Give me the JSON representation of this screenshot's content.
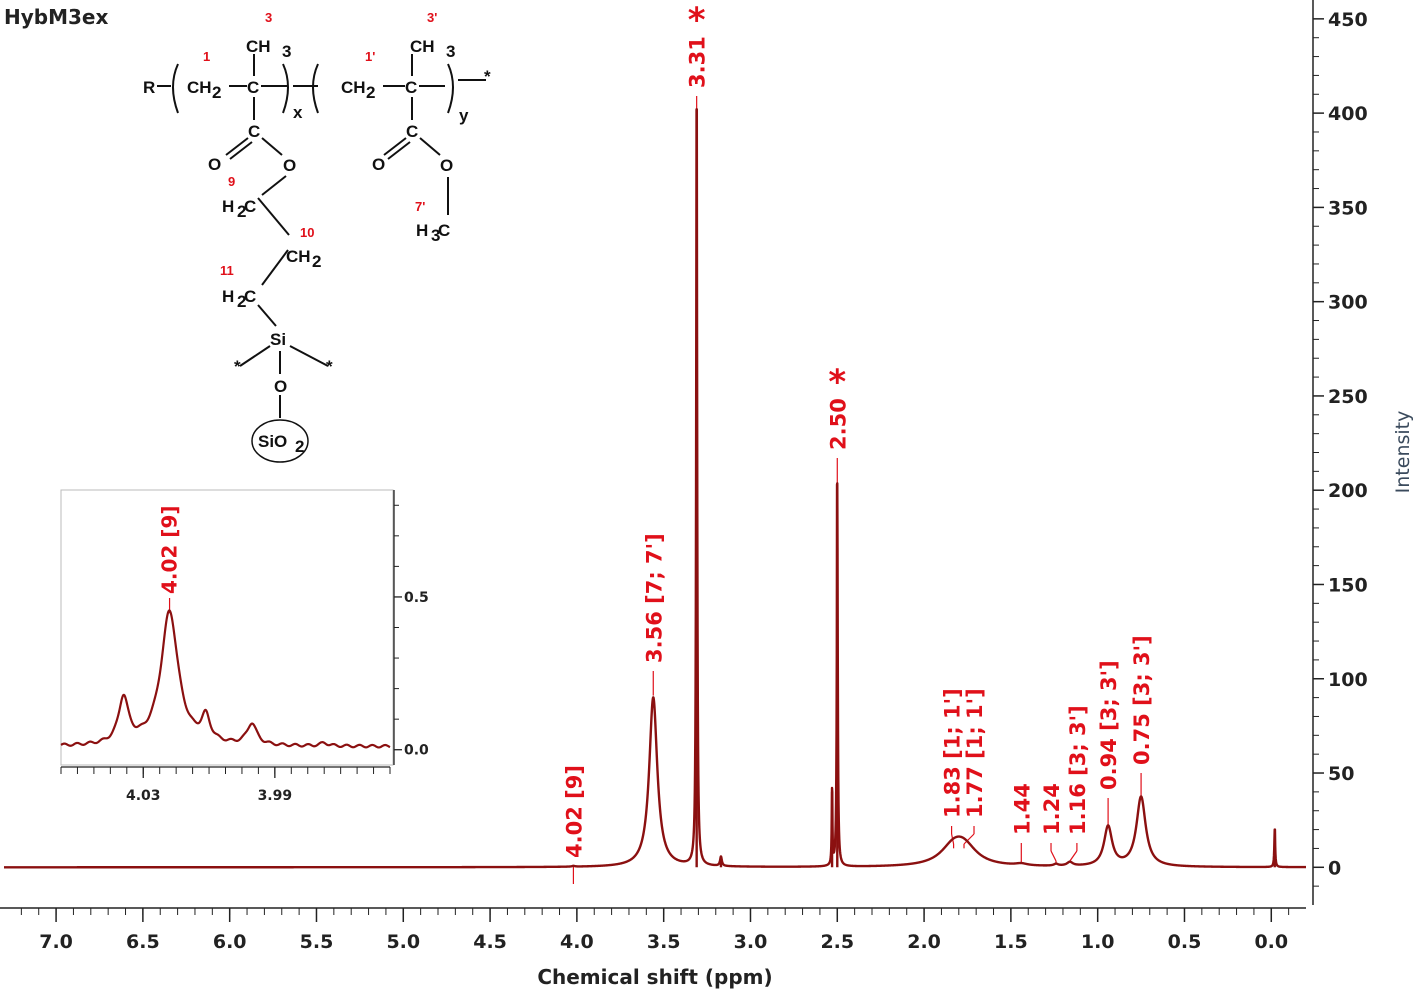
{
  "chart_data": {
    "type": "line",
    "title": "HybM3ex",
    "xlabel": "Chemical shift (ppm)",
    "ylabel": "Intensity",
    "xlim": [
      7.3,
      -0.2
    ],
    "ylim": [
      -20,
      460
    ],
    "x_ticks": [
      "7.0",
      "6.5",
      "6.0",
      "5.5",
      "5.0",
      "4.5",
      "4.0",
      "3.5",
      "3.0",
      "2.5",
      "2.0",
      "1.5",
      "1.0",
      "0.5",
      "0.0"
    ],
    "y_ticks": [
      "0",
      "50",
      "100",
      "150",
      "200",
      "250",
      "300",
      "350",
      "400",
      "450"
    ],
    "series": [
      {
        "peaks": [
          {
            "x": 3.56,
            "y": 90
          },
          {
            "x": 3.31,
            "y": 402
          },
          {
            "x": 3.17,
            "y": 5
          },
          {
            "x": 2.53,
            "y": 40
          },
          {
            "x": 2.5,
            "y": 203
          },
          {
            "x": 1.83,
            "y": 9
          },
          {
            "x": 1.77,
            "y": 9
          },
          {
            "x": 1.44,
            "y": 1
          },
          {
            "x": 1.24,
            "y": 1
          },
          {
            "x": 1.16,
            "y": 2
          },
          {
            "x": 0.94,
            "y": 21
          },
          {
            "x": 0.75,
            "y": 37
          },
          {
            "x": -0.02,
            "y": 20
          },
          {
            "x": 4.02,
            "y": 0.4
          }
        ]
      }
    ],
    "annotations": [
      {
        "x": 4.02,
        "y": 0.4,
        "text": "4.02 [9]"
      },
      {
        "x": 3.56,
        "y": 90,
        "text": "3.56 [7; 7']"
      },
      {
        "x": 3.31,
        "y": 402,
        "text": "3.31",
        "star": "*"
      },
      {
        "x": 2.5,
        "y": 203,
        "text": "2.50",
        "star": "*"
      },
      {
        "x": 1.83,
        "y": 9,
        "text": "1.83 [1; 1']"
      },
      {
        "x": 1.77,
        "y": 9,
        "text": "1.77 [1; 1']"
      },
      {
        "x": 1.44,
        "y": 1,
        "text": "1.44"
      },
      {
        "x": 1.24,
        "y": 1,
        "text": "1.24"
      },
      {
        "x": 1.16,
        "y": 2,
        "text": "1.16 [3; 3']"
      },
      {
        "x": 0.94,
        "y": 21,
        "text": "0.94 [3; 3']"
      },
      {
        "x": 0.75,
        "y": 37,
        "text": "0.75 [3; 3']"
      }
    ],
    "inset": {
      "xlim": [
        4.055,
        3.955
      ],
      "ylim": [
        -0.05,
        0.85
      ],
      "x_ticks": [
        "4.03",
        "3.99"
      ],
      "y_ticks": [
        "0.0",
        "0.5"
      ],
      "peaks": [
        {
          "x": 4.036,
          "y": 0.15
        },
        {
          "x": 4.022,
          "y": 0.44
        },
        {
          "x": 4.011,
          "y": 0.08
        },
        {
          "x": 3.997,
          "y": 0.07
        },
        {
          "x": 3.975,
          "y": 0.01
        }
      ],
      "annotation": {
        "x": 4.022,
        "y": 0.44,
        "text": "4.02 [9]"
      }
    },
    "structure": {
      "R": "R",
      "CH2": "CH",
      "C": "C",
      "CH3": "CH",
      "O": "O",
      "H2C": "H",
      "H3C": "H",
      "Si": "Si",
      "SiO2": "SiO",
      "sub2": "2",
      "sub3": "3",
      "x": "x",
      "y": "y",
      "labels": {
        "1": "1",
        "1p": "1'",
        "3": "3",
        "3p": "3'",
        "7p": "7'",
        "9": "9",
        "10": "10",
        "11": "11"
      }
    },
    "colors": {
      "spectrum": "#8b1010",
      "annotation": "#e0101a",
      "axis": "#222222"
    }
  }
}
